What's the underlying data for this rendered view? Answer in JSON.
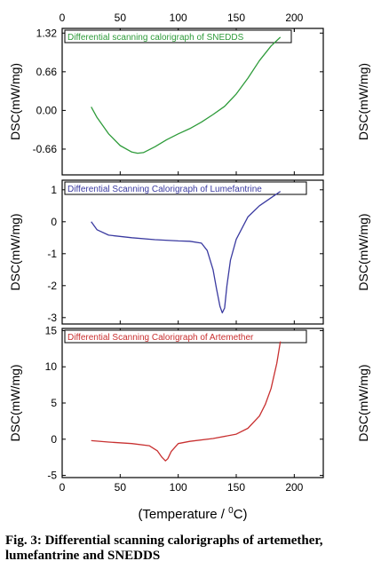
{
  "figure": {
    "caption": "Fig. 3: Differential scanning calorigraphs of artemether, lumefantrine and SNEDDS",
    "xlabel": "(Temperature / ",
    "xlabel_sup": "0",
    "xlabel_end": "C)",
    "top_ticks": [
      "0",
      "50",
      "100",
      "150",
      "200"
    ]
  },
  "chart_data": [
    {
      "type": "line",
      "title": "Differential scanning calorigraph of SNEDDS",
      "ylabel": "DSC(mW/mg)",
      "ylabel_right": "DSC(mW/mg)",
      "color": "#2e9b3a",
      "xlim": [
        0,
        225
      ],
      "ylim": [
        -1.1,
        1.4
      ],
      "yticks": [
        "1.32",
        "0.66",
        "0.00",
        "-0.66"
      ],
      "ytick_values": [
        1.32,
        0.66,
        0.0,
        -0.66
      ],
      "xticks": [
        0,
        50,
        100,
        150,
        200
      ],
      "x": [
        25,
        30,
        40,
        50,
        60,
        65,
        70,
        80,
        90,
        100,
        110,
        120,
        130,
        140,
        150,
        160,
        170,
        180,
        188
      ],
      "y": [
        0.06,
        -0.12,
        -0.4,
        -0.6,
        -0.71,
        -0.73,
        -0.72,
        -0.62,
        -0.5,
        -0.4,
        -0.31,
        -0.2,
        -0.07,
        0.07,
        0.28,
        0.55,
        0.85,
        1.1,
        1.25
      ]
    },
    {
      "type": "line",
      "title": "Differential Scanning Calorigraph of Lumefantrine",
      "ylabel": "DSC(mW/mg)",
      "ylabel_right": "DSC(mW/mg)",
      "color": "#3a3aa0",
      "xlim": [
        0,
        225
      ],
      "ylim": [
        -3.2,
        1.3
      ],
      "yticks": [
        "1",
        "0",
        "-1",
        "-2",
        "-3"
      ],
      "ytick_values": [
        1,
        0,
        -1,
        -2,
        -3
      ],
      "xticks": [
        0,
        50,
        100,
        150,
        200
      ],
      "x": [
        25,
        30,
        40,
        60,
        80,
        100,
        110,
        120,
        125,
        130,
        133,
        136,
        138,
        140,
        142,
        145,
        150,
        160,
        170,
        180,
        188
      ],
      "y": [
        0.0,
        -0.25,
        -0.42,
        -0.5,
        -0.56,
        -0.6,
        -0.61,
        -0.67,
        -0.9,
        -1.5,
        -2.1,
        -2.65,
        -2.85,
        -2.7,
        -2.0,
        -1.2,
        -0.55,
        0.15,
        0.5,
        0.75,
        0.95
      ]
    },
    {
      "type": "line",
      "title": "Differential Scanning Calorigraph of Artemether",
      "ylabel": "DSC(mW/mg)",
      "ylabel_right": "DSC(mW/mg)",
      "color": "#c83030",
      "xlim": [
        0,
        225
      ],
      "ylim": [
        -5.3,
        15.3
      ],
      "yticks": [
        "15",
        "10",
        "5",
        "0",
        "-5"
      ],
      "ytick_values": [
        15,
        10,
        5,
        0,
        -5
      ],
      "xticks": [
        0,
        50,
        100,
        150,
        200
      ],
      "xticklabels": [
        "0",
        "50",
        "100",
        "150",
        "200"
      ],
      "x": [
        25,
        40,
        60,
        75,
        82,
        86,
        89,
        91,
        94,
        100,
        110,
        130,
        150,
        160,
        170,
        175,
        180,
        185,
        188
      ],
      "y": [
        -0.2,
        -0.4,
        -0.6,
        -0.9,
        -1.6,
        -2.5,
        -3.0,
        -2.7,
        -1.7,
        -0.6,
        -0.3,
        0.1,
        0.7,
        1.5,
        3.2,
        4.8,
        7.0,
        10.5,
        13.5
      ]
    }
  ]
}
